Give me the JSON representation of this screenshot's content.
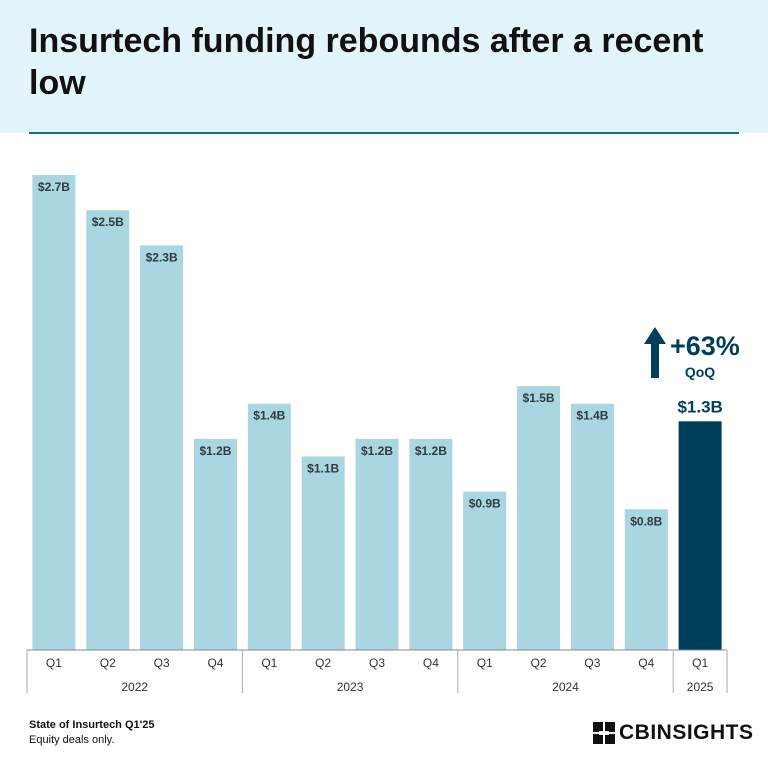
{
  "title": "Insurtech funding rebounds after a recent low",
  "callout": {
    "percent": "+63%",
    "label": "QoQ"
  },
  "footer": {
    "source": "State of Insurtech Q1'25",
    "note": "Equity deals only.",
    "logo_text": "CBINSIGHTS"
  },
  "colors": {
    "bar": "#a9d6e0",
    "highlight": "#003f5c",
    "header_bg": "#e3f5fb"
  },
  "chart_data": {
    "type": "bar",
    "unit": "$B",
    "categories": [
      "Q1",
      "Q2",
      "Q3",
      "Q4",
      "Q1",
      "Q2",
      "Q3",
      "Q4",
      "Q1",
      "Q2",
      "Q3",
      "Q4",
      "Q1"
    ],
    "years": [
      {
        "label": "2022",
        "count": 4
      },
      {
        "label": "2023",
        "count": 4
      },
      {
        "label": "2024",
        "count": 4
      },
      {
        "label": "2025",
        "count": 1
      }
    ],
    "values": [
      2.7,
      2.5,
      2.3,
      1.2,
      1.4,
      1.1,
      1.2,
      1.2,
      0.9,
      1.5,
      1.4,
      0.8,
      1.3
    ],
    "labels": [
      "$2.7B",
      "$2.5B",
      "$2.3B",
      "$1.2B",
      "$1.4B",
      "$1.1B",
      "$1.2B",
      "$1.2B",
      "$0.9B",
      "$1.5B",
      "$1.4B",
      "$0.8B",
      "$1.3B"
    ],
    "highlight_index": 12,
    "ylim": [
      0,
      2.7
    ],
    "grid": false,
    "title": "",
    "xlabel": "",
    "ylabel": ""
  }
}
